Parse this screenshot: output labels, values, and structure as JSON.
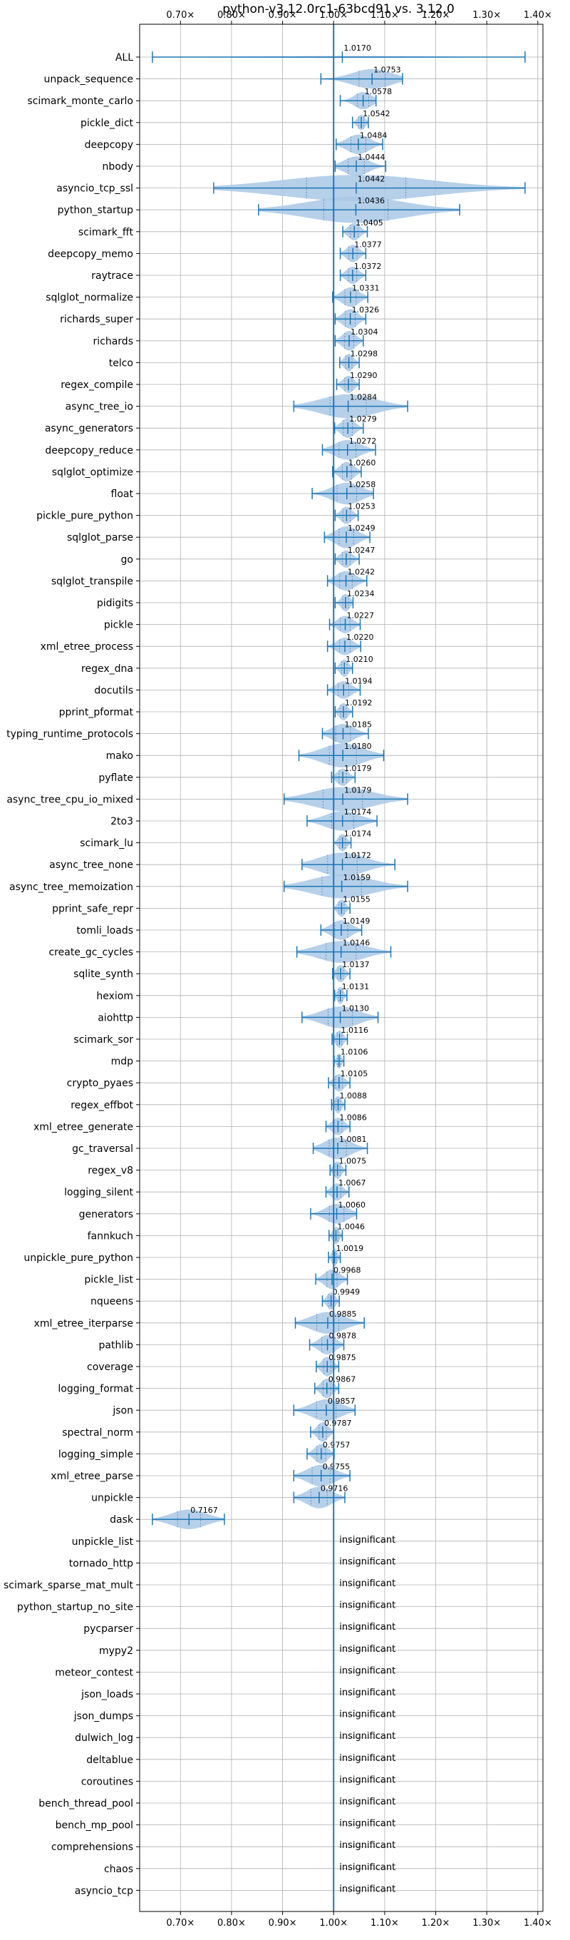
{
  "chart_data": {
    "type": "violin",
    "title": "python-v3.12.0rc1-63bcd91 vs. 3.12.0",
    "xlim": [
      0.62,
      1.41
    ],
    "xticks": [
      0.7,
      0.8,
      0.9,
      1.0,
      1.1,
      1.2,
      1.3,
      1.4
    ],
    "xtick_labels": [
      "0.70×",
      "0.80×",
      "0.90×",
      "1.00×",
      "1.10×",
      "1.20×",
      "1.30×",
      "1.40×"
    ],
    "reference_line": 1.0,
    "grid": true,
    "colors": {
      "violin": "#a9c8e6",
      "line": "#1f77b4",
      "grid": "#b0b0b0"
    },
    "insignificant_text": "insignificant",
    "benchmarks": [
      {
        "name": "ALL",
        "mean": 1.017,
        "min": 0.645,
        "max": 1.375,
        "width": 0.05,
        "label": "1.0170"
      },
      {
        "name": "unpack_sequence",
        "mean": 1.0753,
        "min": 0.975,
        "max": 1.135,
        "width": 0.45,
        "label": "1.0753"
      },
      {
        "name": "scimark_monte_carlo",
        "mean": 1.0578,
        "min": 1.013,
        "max": 1.083,
        "width": 0.4,
        "label": "1.0578"
      },
      {
        "name": "pickle_dict",
        "mean": 1.0542,
        "min": 1.037,
        "max": 1.068,
        "width": 0.35,
        "label": "1.0542"
      },
      {
        "name": "deepcopy",
        "mean": 1.0484,
        "min": 1.005,
        "max": 1.096,
        "width": 0.45,
        "label": "1.0484"
      },
      {
        "name": "nbody",
        "mean": 1.0444,
        "min": 1.003,
        "max": 1.102,
        "width": 0.45,
        "label": "1.0444"
      },
      {
        "name": "asyncio_tcp_ssl",
        "mean": 1.0442,
        "min": 0.765,
        "max": 1.375,
        "width": 0.6,
        "label": "1.0442"
      },
      {
        "name": "python_startup",
        "mean": 1.0436,
        "min": 0.853,
        "max": 1.247,
        "width": 0.6,
        "label": "1.0436"
      },
      {
        "name": "scimark_fft",
        "mean": 1.0405,
        "min": 1.018,
        "max": 1.066,
        "width": 0.4,
        "label": "1.0405"
      },
      {
        "name": "deepcopy_memo",
        "mean": 1.0377,
        "min": 1.013,
        "max": 1.063,
        "width": 0.4,
        "label": "1.0377"
      },
      {
        "name": "raytrace",
        "mean": 1.0372,
        "min": 1.013,
        "max": 1.063,
        "width": 0.4,
        "label": "1.0372"
      },
      {
        "name": "sqlglot_normalize",
        "mean": 1.0331,
        "min": 0.998,
        "max": 1.067,
        "width": 0.45,
        "label": "1.0331"
      },
      {
        "name": "richards_super",
        "mean": 1.0326,
        "min": 1.003,
        "max": 1.063,
        "width": 0.45,
        "label": "1.0326"
      },
      {
        "name": "richards",
        "mean": 1.0304,
        "min": 1.003,
        "max": 1.058,
        "width": 0.45,
        "label": "1.0304"
      },
      {
        "name": "telco",
        "mean": 1.0298,
        "min": 1.012,
        "max": 1.05,
        "width": 0.4,
        "label": "1.0298"
      },
      {
        "name": "regex_compile",
        "mean": 1.029,
        "min": 1.006,
        "max": 1.05,
        "width": 0.4,
        "label": "1.0290"
      },
      {
        "name": "async_tree_io",
        "mean": 1.0284,
        "min": 0.922,
        "max": 1.145,
        "width": 0.55,
        "label": "1.0284"
      },
      {
        "name": "async_generators",
        "mean": 1.0279,
        "min": 1.002,
        "max": 1.058,
        "width": 0.45,
        "label": "1.0279"
      },
      {
        "name": "deepcopy_reduce",
        "mean": 1.0272,
        "min": 0.978,
        "max": 1.082,
        "width": 0.45,
        "label": "1.0272"
      },
      {
        "name": "sqlglot_optimize",
        "mean": 1.026,
        "min": 0.998,
        "max": 1.054,
        "width": 0.45,
        "label": "1.0260"
      },
      {
        "name": "float",
        "mean": 1.0258,
        "min": 0.958,
        "max": 1.078,
        "width": 0.5,
        "label": "1.0258"
      },
      {
        "name": "pickle_pure_python",
        "mean": 1.0253,
        "min": 1.003,
        "max": 1.048,
        "width": 0.4,
        "label": "1.0253"
      },
      {
        "name": "sqlglot_parse",
        "mean": 1.0249,
        "min": 0.982,
        "max": 1.071,
        "width": 0.5,
        "label": "1.0249"
      },
      {
        "name": "go",
        "mean": 1.0247,
        "min": 1.003,
        "max": 1.05,
        "width": 0.4,
        "label": "1.0247"
      },
      {
        "name": "sqlglot_transpile",
        "mean": 1.0242,
        "min": 0.988,
        "max": 1.065,
        "width": 0.45,
        "label": "1.0242"
      },
      {
        "name": "pidigits",
        "mean": 1.0234,
        "min": 1.003,
        "max": 1.038,
        "width": 0.4,
        "label": "1.0234"
      },
      {
        "name": "pickle",
        "mean": 1.0227,
        "min": 0.992,
        "max": 1.052,
        "width": 0.4,
        "label": "1.0227"
      },
      {
        "name": "xml_etree_process",
        "mean": 1.022,
        "min": 0.988,
        "max": 1.053,
        "width": 0.4,
        "label": "1.0220"
      },
      {
        "name": "regex_dna",
        "mean": 1.021,
        "min": 1.003,
        "max": 1.037,
        "width": 0.4,
        "label": "1.0210"
      },
      {
        "name": "docutils",
        "mean": 1.0194,
        "min": 0.988,
        "max": 1.052,
        "width": 0.4,
        "label": "1.0194"
      },
      {
        "name": "pprint_pformat",
        "mean": 1.0192,
        "min": 1.003,
        "max": 1.037,
        "width": 0.4,
        "label": "1.0192"
      },
      {
        "name": "typing_runtime_protocols",
        "mean": 1.0185,
        "min": 0.978,
        "max": 1.068,
        "width": 0.45,
        "label": "1.0185"
      },
      {
        "name": "mako",
        "mean": 1.018,
        "min": 0.932,
        "max": 1.098,
        "width": 0.55,
        "label": "1.0180"
      },
      {
        "name": "pyflate",
        "mean": 1.0179,
        "min": 0.996,
        "max": 1.042,
        "width": 0.4,
        "label": "1.0179"
      },
      {
        "name": "async_tree_cpu_io_mixed",
        "mean": 1.0179,
        "min": 0.903,
        "max": 1.145,
        "width": 0.55,
        "label": "1.0179"
      },
      {
        "name": "2to3",
        "mean": 1.0174,
        "min": 0.948,
        "max": 1.085,
        "width": 0.45,
        "label": "1.0174"
      },
      {
        "name": "scimark_lu",
        "mean": 1.0174,
        "min": 1.0,
        "max": 1.034,
        "width": 0.4,
        "label": "1.0174"
      },
      {
        "name": "async_tree_none",
        "mean": 1.0172,
        "min": 0.938,
        "max": 1.12,
        "width": 0.55,
        "label": "1.0172"
      },
      {
        "name": "async_tree_memoization",
        "mean": 1.0159,
        "min": 0.903,
        "max": 1.145,
        "width": 0.55,
        "label": "1.0159"
      },
      {
        "name": "pprint_safe_repr",
        "mean": 1.0155,
        "min": 1.0,
        "max": 1.032,
        "width": 0.4,
        "label": "1.0155"
      },
      {
        "name": "tomli_loads",
        "mean": 1.0149,
        "min": 0.975,
        "max": 1.055,
        "width": 0.45,
        "label": "1.0149"
      },
      {
        "name": "create_gc_cycles",
        "mean": 1.0146,
        "min": 0.928,
        "max": 1.112,
        "width": 0.5,
        "label": "1.0146"
      },
      {
        "name": "sqlite_synth",
        "mean": 1.0137,
        "min": 0.998,
        "max": 1.032,
        "width": 0.4,
        "label": "1.0137"
      },
      {
        "name": "hexiom",
        "mean": 1.0131,
        "min": 1.002,
        "max": 1.026,
        "width": 0.4,
        "label": "1.0131"
      },
      {
        "name": "aiohttp",
        "mean": 1.013,
        "min": 0.938,
        "max": 1.087,
        "width": 0.5,
        "label": "1.0130"
      },
      {
        "name": "scimark_sor",
        "mean": 1.0116,
        "min": 0.997,
        "max": 1.027,
        "width": 0.4,
        "label": "1.0116"
      },
      {
        "name": "mdp",
        "mean": 1.0106,
        "min": 1.001,
        "max": 1.02,
        "width": 0.35,
        "label": "1.0106"
      },
      {
        "name": "crypto_pyaes",
        "mean": 1.0105,
        "min": 0.99,
        "max": 1.032,
        "width": 0.4,
        "label": "1.0105"
      },
      {
        "name": "regex_effbot",
        "mean": 1.0088,
        "min": 0.996,
        "max": 1.022,
        "width": 0.4,
        "label": "1.0088"
      },
      {
        "name": "xml_etree_generate",
        "mean": 1.0086,
        "min": 0.985,
        "max": 1.032,
        "width": 0.4,
        "label": "1.0086"
      },
      {
        "name": "gc_traversal",
        "mean": 1.0081,
        "min": 0.96,
        "max": 1.066,
        "width": 0.5,
        "label": "1.0081"
      },
      {
        "name": "regex_v8",
        "mean": 1.0075,
        "min": 0.993,
        "max": 1.024,
        "width": 0.4,
        "label": "1.0075"
      },
      {
        "name": "logging_silent",
        "mean": 1.0067,
        "min": 0.985,
        "max": 1.03,
        "width": 0.4,
        "label": "1.0067"
      },
      {
        "name": "generators",
        "mean": 1.006,
        "min": 0.955,
        "max": 1.045,
        "width": 0.45,
        "label": "1.0060"
      },
      {
        "name": "fannkuch",
        "mean": 1.0046,
        "min": 0.991,
        "max": 1.017,
        "width": 0.4,
        "label": "1.0046"
      },
      {
        "name": "unpickle_pure_python",
        "mean": 1.0019,
        "min": 0.99,
        "max": 1.013,
        "width": 0.4,
        "label": "1.0019"
      },
      {
        "name": "pickle_list",
        "mean": 0.9968,
        "min": 0.965,
        "max": 1.027,
        "width": 0.45,
        "label": "0.9968"
      },
      {
        "name": "nqueens",
        "mean": 0.9949,
        "min": 0.978,
        "max": 1.011,
        "width": 0.4,
        "label": "0.9949"
      },
      {
        "name": "xml_etree_iterparse",
        "mean": 0.9885,
        "min": 0.925,
        "max": 1.06,
        "width": 0.5,
        "label": "0.9885"
      },
      {
        "name": "pathlib",
        "mean": 0.9878,
        "min": 0.953,
        "max": 1.02,
        "width": 0.45,
        "label": "0.9878"
      },
      {
        "name": "coverage",
        "mean": 0.9875,
        "min": 0.966,
        "max": 1.01,
        "width": 0.45,
        "label": "0.9875"
      },
      {
        "name": "logging_format",
        "mean": 0.9867,
        "min": 0.963,
        "max": 1.01,
        "width": 0.45,
        "label": "0.9867"
      },
      {
        "name": "json",
        "mean": 0.9857,
        "min": 0.922,
        "max": 1.042,
        "width": 0.5,
        "label": "0.9857"
      },
      {
        "name": "spectral_norm",
        "mean": 0.9787,
        "min": 0.955,
        "max": 1.0,
        "width": 0.45,
        "label": "0.9787"
      },
      {
        "name": "logging_simple",
        "mean": 0.9757,
        "min": 0.948,
        "max": 1.001,
        "width": 0.45,
        "label": "0.9757"
      },
      {
        "name": "xml_etree_parse",
        "mean": 0.9755,
        "min": 0.922,
        "max": 1.032,
        "width": 0.5,
        "label": "0.9755"
      },
      {
        "name": "unpickle",
        "mean": 0.9716,
        "min": 0.922,
        "max": 1.022,
        "width": 0.5,
        "label": "0.9716"
      },
      {
        "name": "dask",
        "mean": 0.7167,
        "min": 0.645,
        "max": 0.786,
        "width": 0.45,
        "label": "0.7167"
      },
      {
        "name": "unpickle_list",
        "insignificant": true
      },
      {
        "name": "tornado_http",
        "insignificant": true
      },
      {
        "name": "scimark_sparse_mat_mult",
        "insignificant": true
      },
      {
        "name": "python_startup_no_site",
        "insignificant": true
      },
      {
        "name": "pycparser",
        "insignificant": true
      },
      {
        "name": "mypy2",
        "insignificant": true
      },
      {
        "name": "meteor_contest",
        "insignificant": true
      },
      {
        "name": "json_loads",
        "insignificant": true
      },
      {
        "name": "json_dumps",
        "insignificant": true
      },
      {
        "name": "dulwich_log",
        "insignificant": true
      },
      {
        "name": "deltablue",
        "insignificant": true
      },
      {
        "name": "coroutines",
        "insignificant": true
      },
      {
        "name": "bench_thread_pool",
        "insignificant": true
      },
      {
        "name": "bench_mp_pool",
        "insignificant": true
      },
      {
        "name": "comprehensions",
        "insignificant": true
      },
      {
        "name": "chaos",
        "insignificant": true
      },
      {
        "name": "asyncio_tcp",
        "insignificant": true
      }
    ]
  }
}
